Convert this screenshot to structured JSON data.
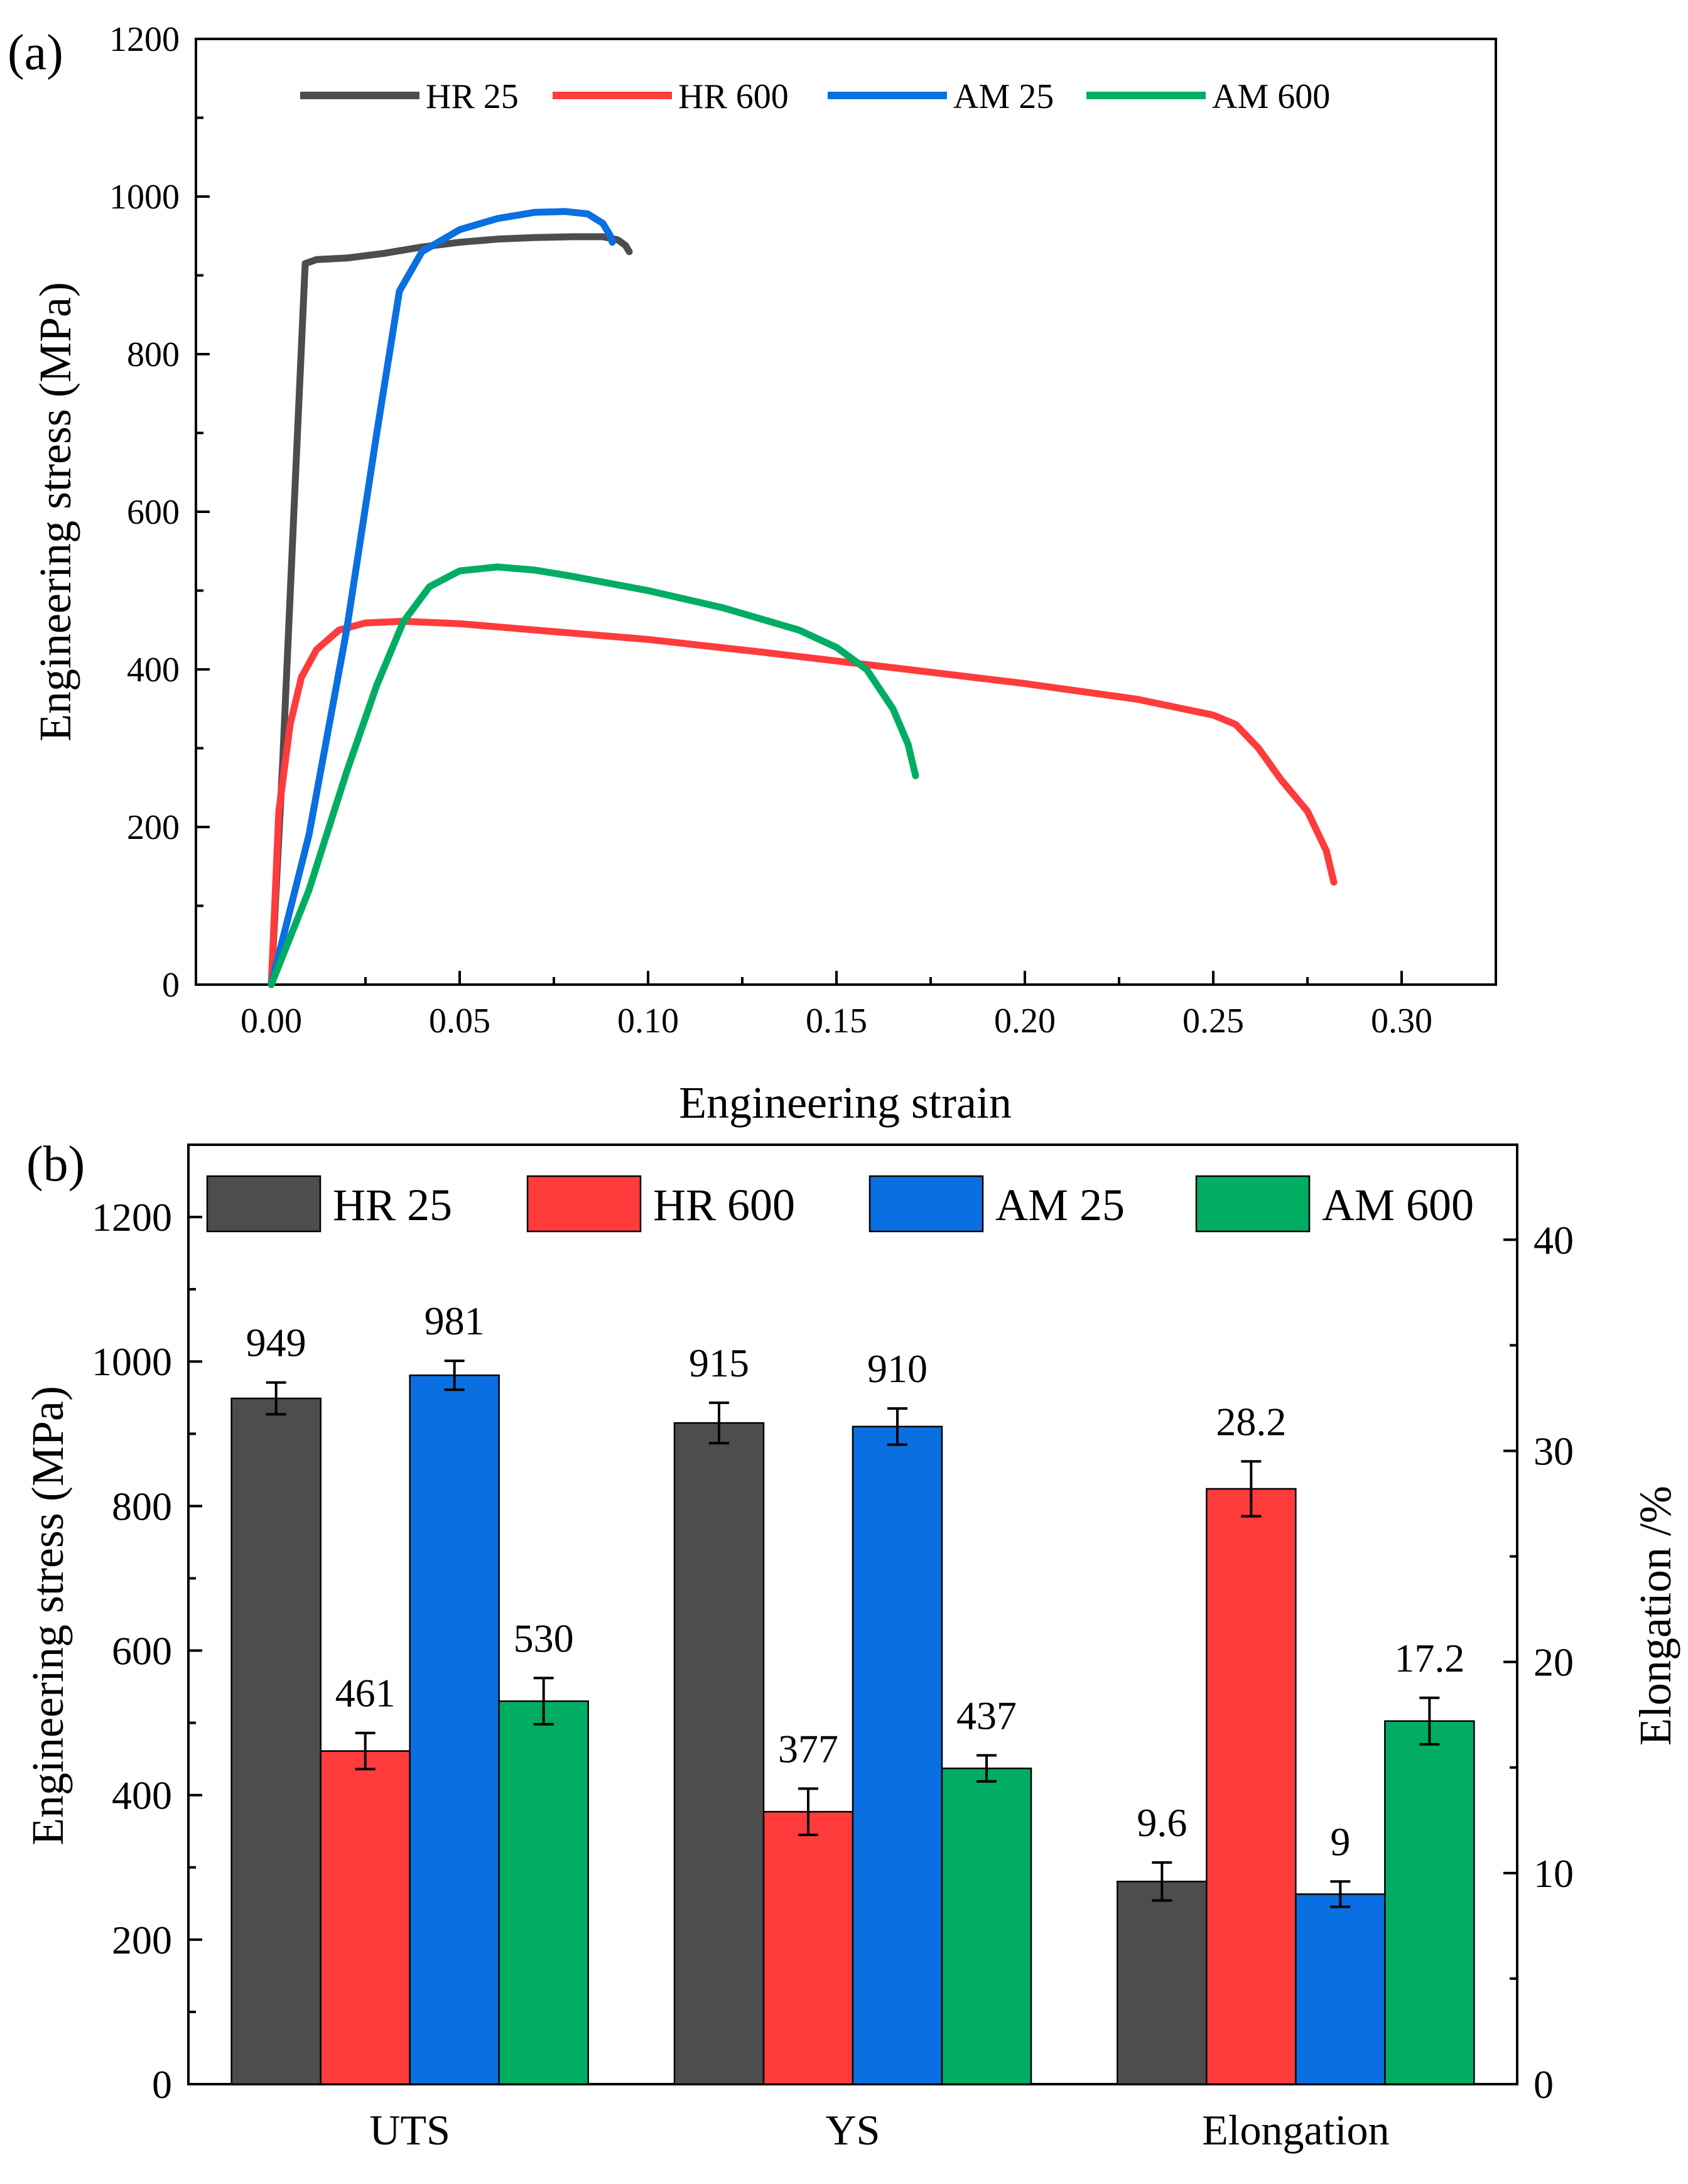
{
  "colors": {
    "HR 25": "#4d4d4d",
    "HR 600": "#ff3b3b",
    "AM 25": "#0a6fe0",
    "AM 600": "#00ad62"
  },
  "chart_data": [
    {
      "type": "line",
      "panel_label": "(a)",
      "xlabel": "Engineering strain",
      "ylabel": "Engineering stress (MPa)",
      "xlim": [
        -0.02,
        0.325
      ],
      "ylim": [
        0,
        1200
      ],
      "x_ticks": [
        "0.00",
        "0.05",
        "0.10",
        "0.15",
        "0.20",
        "0.25",
        "0.30"
      ],
      "y_ticks": [
        "0",
        "200",
        "400",
        "600",
        "800",
        "1000",
        "1200"
      ],
      "legend": [
        "HR 25",
        "HR 600",
        "AM 25",
        "AM 600"
      ],
      "legend_position": "top",
      "series": [
        {
          "name": "HR 25",
          "points": [
            [
              0,
              0
            ],
            [
              0.003,
              280
            ],
            [
              0.006,
              600
            ],
            [
              0.009,
              915
            ],
            [
              0.012,
              920
            ],
            [
              0.02,
              922
            ],
            [
              0.03,
              928
            ],
            [
              0.04,
              936
            ],
            [
              0.05,
              942
            ],
            [
              0.06,
              946
            ],
            [
              0.07,
              948
            ],
            [
              0.08,
              949
            ],
            [
              0.088,
              949
            ],
            [
              0.092,
              945
            ],
            [
              0.094,
              938
            ],
            [
              0.095,
              930
            ]
          ]
        },
        {
          "name": "HR 600",
          "points": [
            [
              0,
              0
            ],
            [
              0.002,
              220
            ],
            [
              0.005,
              330
            ],
            [
              0.008,
              390
            ],
            [
              0.012,
              425
            ],
            [
              0.018,
              450
            ],
            [
              0.025,
              459
            ],
            [
              0.035,
              461
            ],
            [
              0.05,
              458
            ],
            [
              0.07,
              450
            ],
            [
              0.1,
              438
            ],
            [
              0.13,
              422
            ],
            [
              0.16,
              405
            ],
            [
              0.2,
              382
            ],
            [
              0.23,
              362
            ],
            [
              0.25,
              342
            ],
            [
              0.256,
              330
            ],
            [
              0.262,
              300
            ],
            [
              0.268,
              260
            ],
            [
              0.275,
              220
            ],
            [
              0.28,
              170
            ],
            [
              0.282,
              130
            ]
          ]
        },
        {
          "name": "AM 25",
          "points": [
            [
              0,
              0
            ],
            [
              0.01,
              190
            ],
            [
              0.02,
              450
            ],
            [
              0.028,
              700
            ],
            [
              0.034,
              880
            ],
            [
              0.04,
              930
            ],
            [
              0.05,
              958
            ],
            [
              0.06,
              972
            ],
            [
              0.07,
              980
            ],
            [
              0.078,
              981
            ],
            [
              0.084,
              978
            ],
            [
              0.088,
              966
            ],
            [
              0.09,
              950
            ],
            [
              0.0905,
              942
            ]
          ]
        },
        {
          "name": "AM 600",
          "points": [
            [
              0,
              0
            ],
            [
              0.01,
              120
            ],
            [
              0.02,
              270
            ],
            [
              0.028,
              380
            ],
            [
              0.035,
              460
            ],
            [
              0.042,
              505
            ],
            [
              0.05,
              525
            ],
            [
              0.06,
              530
            ],
            [
              0.07,
              526
            ],
            [
              0.08,
              518
            ],
            [
              0.1,
              500
            ],
            [
              0.12,
              478
            ],
            [
              0.14,
              450
            ],
            [
              0.15,
              428
            ],
            [
              0.158,
              400
            ],
            [
              0.165,
              350
            ],
            [
              0.169,
              305
            ],
            [
              0.171,
              265
            ]
          ]
        }
      ]
    },
    {
      "type": "bar",
      "panel_label": "(b)",
      "ylabel": "Engineering stress (MPa)",
      "y2label": "Elongation /%",
      "ylim": [
        0,
        1300
      ],
      "y2lim": [
        0,
        44.5
      ],
      "y_ticks": [
        "0",
        "200",
        "400",
        "600",
        "800",
        "1000",
        "1200"
      ],
      "y2_ticks": [
        "0",
        "10",
        "20",
        "30",
        "40"
      ],
      "categories": [
        "UTS",
        "YS",
        "Elongation"
      ],
      "legend": [
        "HR 25",
        "HR 600",
        "AM 25",
        "AM 600"
      ],
      "legend_position": "top",
      "series": [
        {
          "name": "HR 25",
          "values": [
            949,
            915,
            9.6
          ],
          "errors": [
            22,
            28,
            0.9
          ],
          "labels": [
            "949",
            "915",
            "9.6"
          ]
        },
        {
          "name": "HR 600",
          "values": [
            461,
            377,
            28.2
          ],
          "errors": [
            25,
            32,
            1.3
          ],
          "labels": [
            "461",
            "377",
            "28.2"
          ]
        },
        {
          "name": "AM 25",
          "values": [
            981,
            910,
            9
          ],
          "errors": [
            20,
            25,
            0.6
          ],
          "labels": [
            "981",
            "910",
            "9"
          ]
        },
        {
          "name": "AM 600",
          "values": [
            530,
            437,
            17.2
          ],
          "errors": [
            32,
            18,
            1.1
          ],
          "labels": [
            "530",
            "437",
            "17.2"
          ]
        }
      ],
      "axis_for_category": [
        "left",
        "left",
        "right"
      ]
    }
  ]
}
